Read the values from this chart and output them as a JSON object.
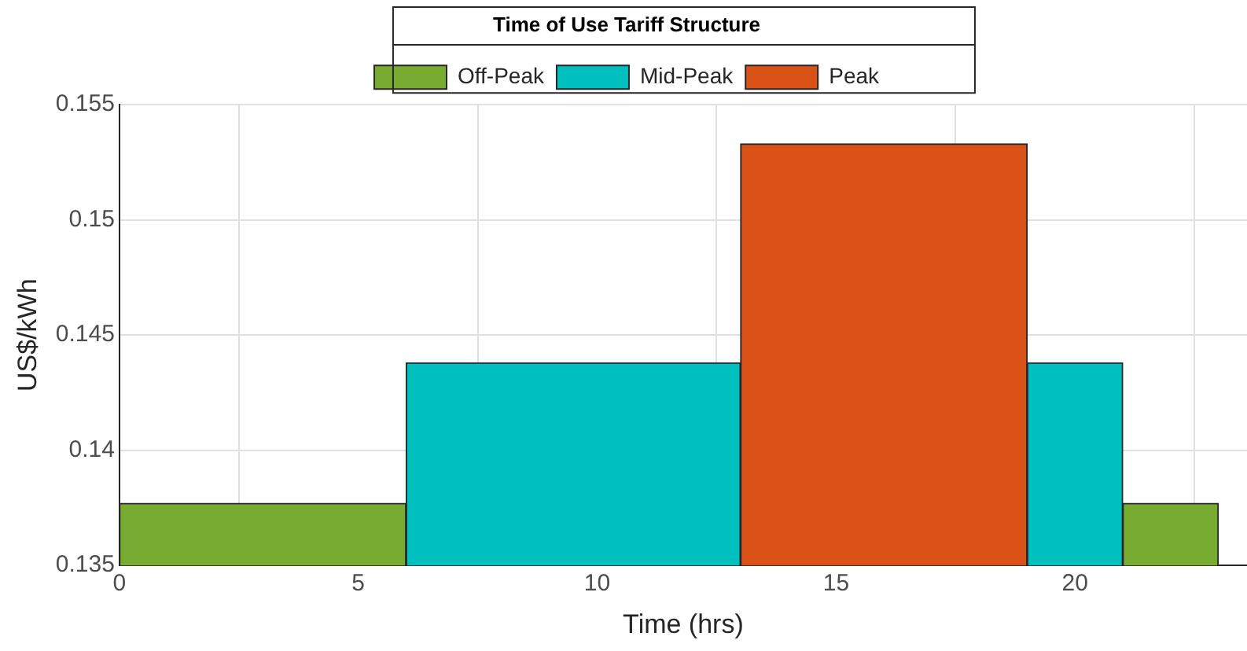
{
  "chart_data": {
    "type": "histogram",
    "legend_title": "Time of Use Tariff Structure",
    "xlabel": "Time (hrs)",
    "ylabel": "US$/kWh",
    "bins": [
      0,
      6,
      13,
      19,
      21,
      23
    ],
    "series": [
      {
        "name": "Off-Peak",
        "color": "#77ac30",
        "values": [
          0.1377,
          null,
          null,
          null,
          0.1377
        ]
      },
      {
        "name": "Mid-Peak",
        "color": "#00bfbf",
        "values": [
          null,
          0.1438,
          null,
          0.1438,
          null
        ]
      },
      {
        "name": "Peak",
        "color": "#d95319",
        "values": [
          null,
          null,
          0.1533,
          null,
          null
        ]
      }
    ],
    "xlim": [
      0,
      23.6
    ],
    "xticks": [
      0,
      5,
      10,
      15,
      20
    ],
    "ylim": [
      0.135,
      0.155
    ],
    "yticks": [
      0.135,
      0.14,
      0.145,
      0.15,
      0.155
    ],
    "grid": true,
    "legend": "top"
  }
}
